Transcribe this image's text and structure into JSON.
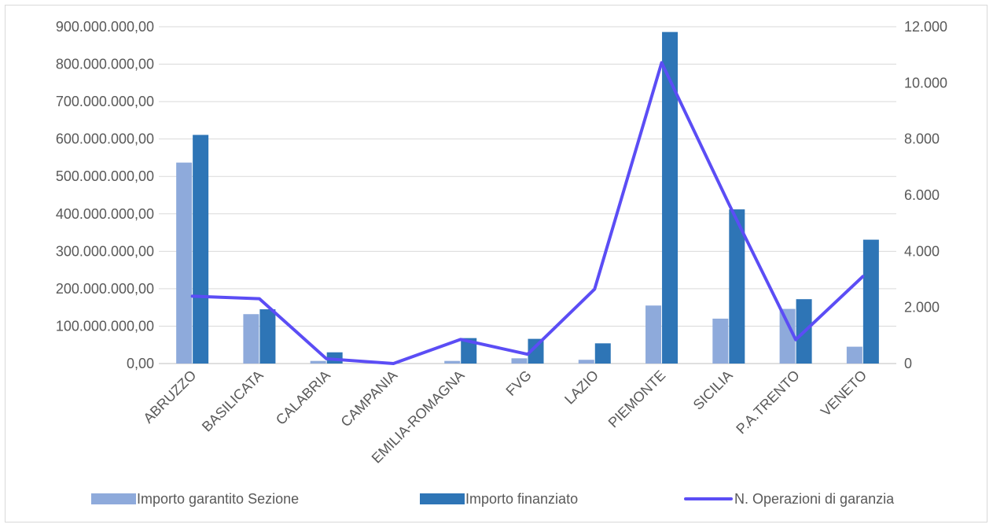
{
  "chart_data": {
    "type": "bar",
    "categories": [
      "ABRUZZO",
      "BASILICATA",
      "CALABRIA",
      "CAMPANIA",
      "EMILIA-ROMAGNA",
      "FVG",
      "LAZIO",
      "PIEMONTE",
      "SICILIA",
      "P.A.TRENTO",
      "VENETO"
    ],
    "series": [
      {
        "name": "Importo garantito Sezione",
        "type": "bar",
        "axis": "left",
        "color": "#8eaadb",
        "values": [
          537000000,
          132000000,
          7000000,
          0,
          7000000,
          14000000,
          10000000,
          155000000,
          120000000,
          146000000,
          45000000
        ]
      },
      {
        "name": "Importo finanziato",
        "type": "bar",
        "axis": "left",
        "color": "#2e75b6",
        "values": [
          611000000,
          145000000,
          30000000,
          0,
          68000000,
          66000000,
          54000000,
          886000000,
          412000000,
          172000000,
          331000000
        ]
      },
      {
        "name": "N. Operazioni di garanzia",
        "type": "line",
        "axis": "right",
        "color": "#5b4df5",
        "values": [
          2400,
          2310,
          170,
          0,
          860,
          330,
          2650,
          10720,
          5700,
          850,
          3100
        ]
      }
    ],
    "y_left": {
      "ylim": [
        0,
        900000000
      ],
      "ticks": [
        "0,00",
        "100.000.000,00",
        "200.000.000,00",
        "300.000.000,00",
        "400.000.000,00",
        "500.000.000,00",
        "600.000.000,00",
        "700.000.000,00",
        "800.000.000,00",
        "900.000.000,00"
      ]
    },
    "y_right": {
      "ylim": [
        0,
        12000
      ],
      "ticks": [
        "0",
        "2.000",
        "4.000",
        "6.000",
        "8.000",
        "10.000",
        "12.000"
      ]
    },
    "grid": true,
    "legend": "bottom"
  }
}
